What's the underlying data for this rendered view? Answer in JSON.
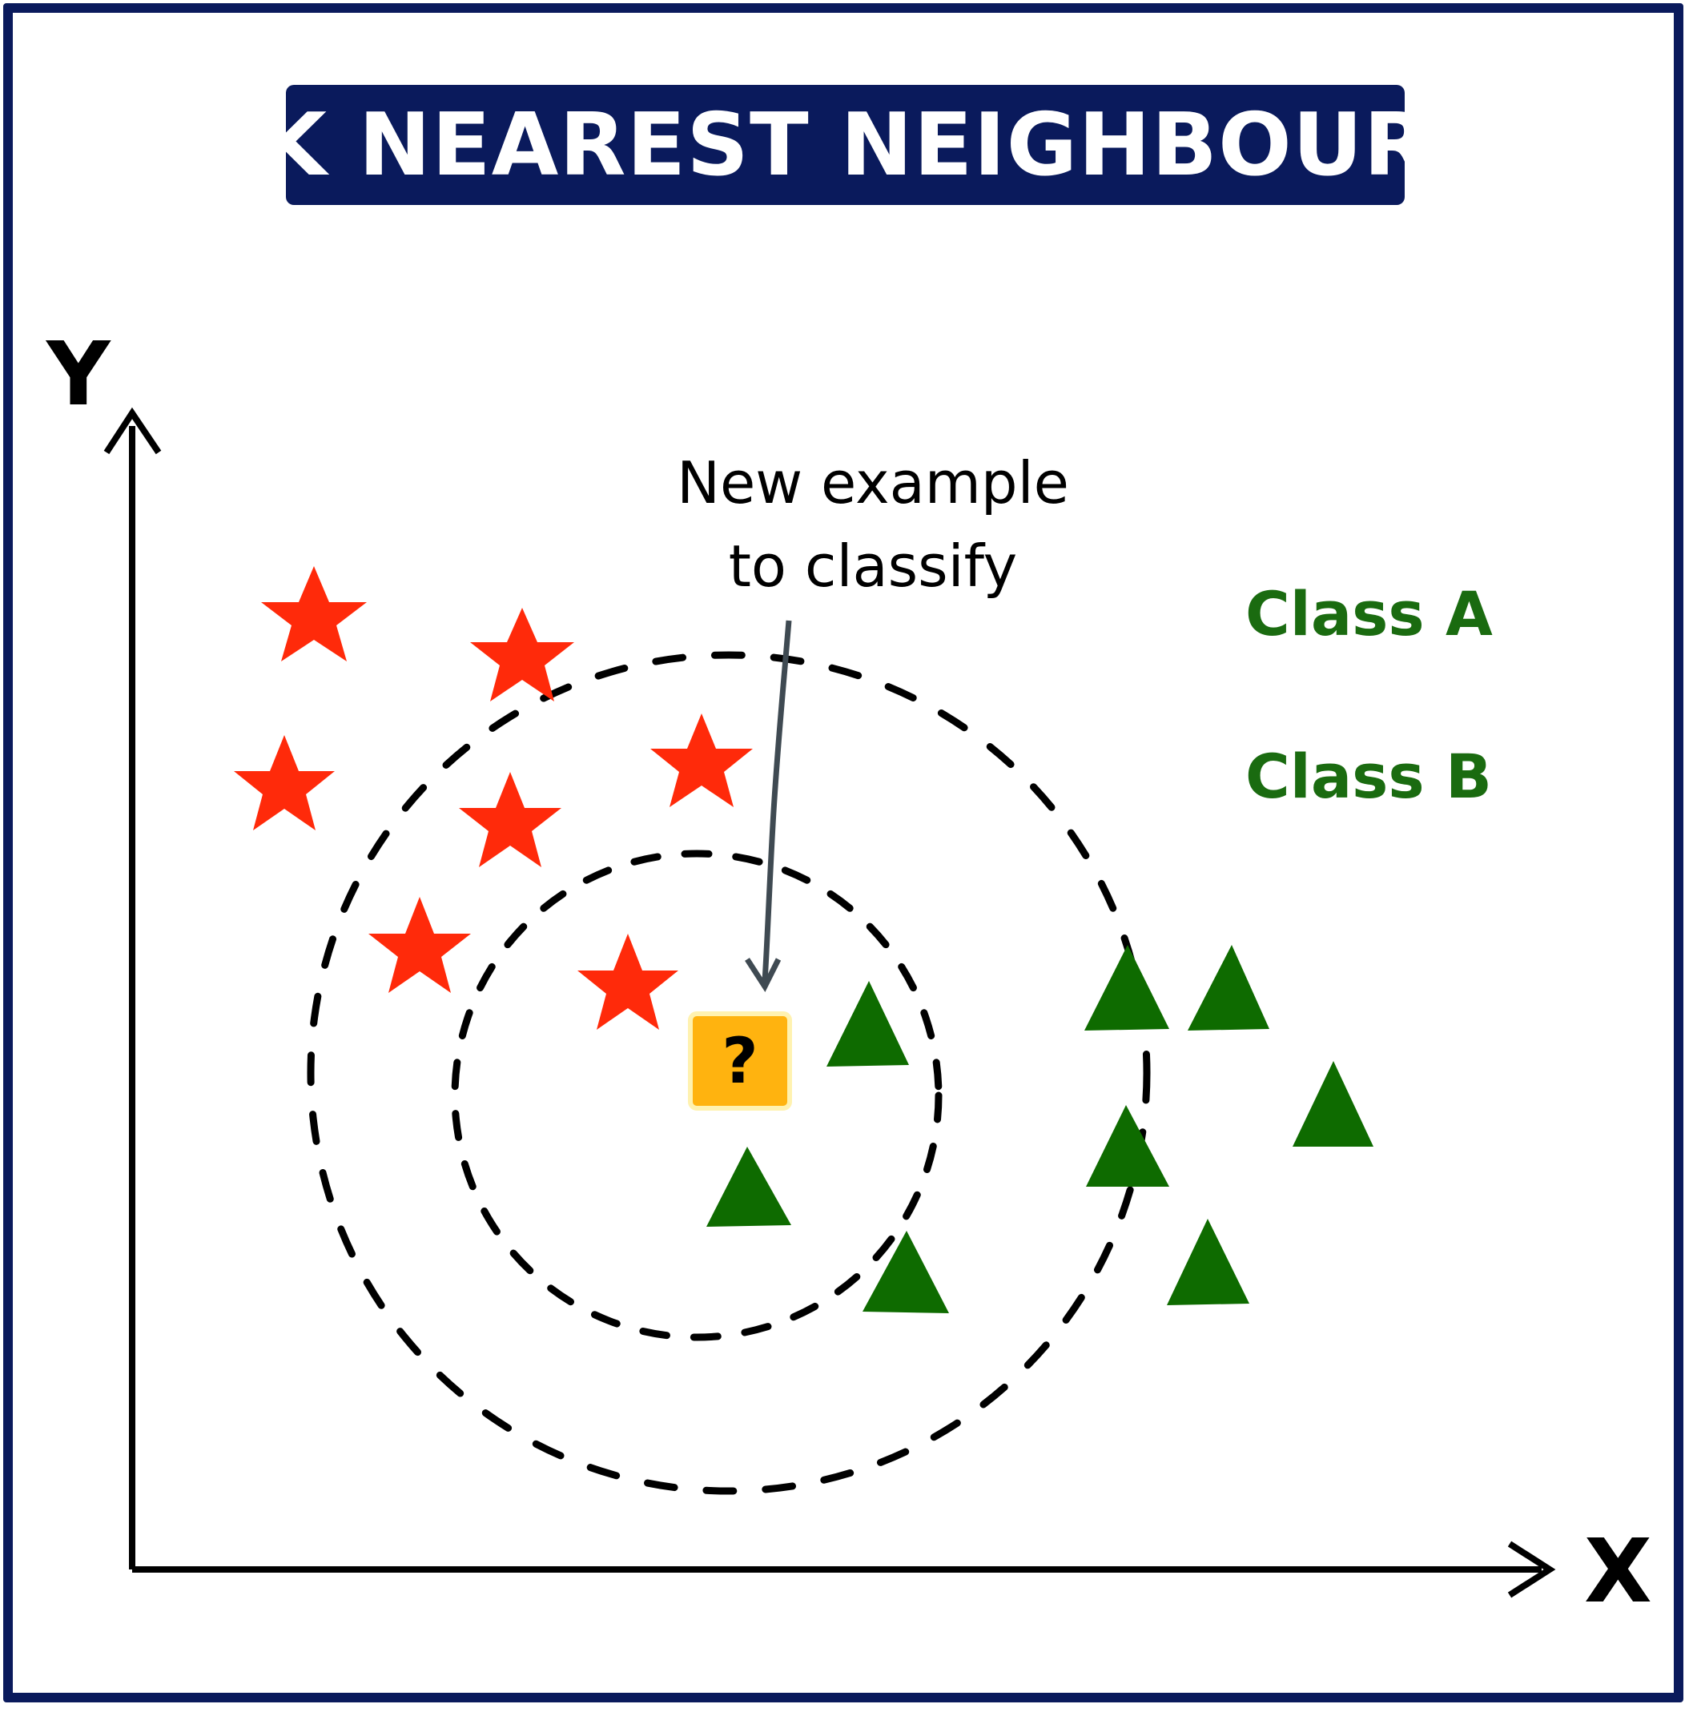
{
  "title": "K NEAREST NEIGHBOUR",
  "axes": {
    "x_label": "X",
    "y_label": "Y"
  },
  "annotation": {
    "line1": "New example",
    "line2": "to classify"
  },
  "legend": {
    "class_a": "Class A",
    "class_b": "Class B"
  },
  "query_point": {
    "symbol": "?"
  },
  "colors": {
    "frame": "#0a1a5c",
    "title_bg": "#0a1a5c",
    "star": "#ff2a0a",
    "triangle": "#0e6b00",
    "legend_text": "#1a6b10",
    "query_fill": "#ffb30f",
    "arrow": "#3f4a52"
  },
  "icons": {
    "class_a_marker": "red-star-icon",
    "class_b_marker": "green-triangle-icon",
    "query_marker": "question-box-icon"
  }
}
